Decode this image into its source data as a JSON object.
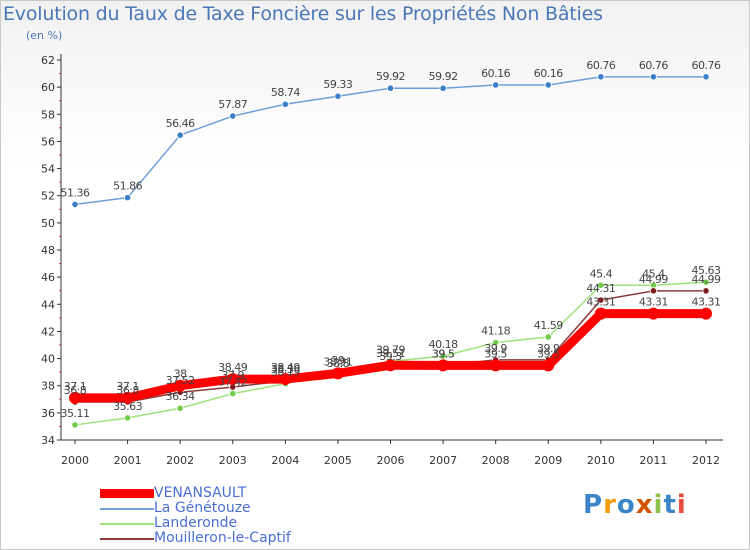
{
  "title": "Evolution du Taux de Taxe Foncière sur les Propriétés Non Bâties",
  "unit_label": "(en %)",
  "logo": {
    "letters": [
      "P",
      "r",
      "o",
      "x",
      "i",
      "t",
      "i"
    ],
    "colors": [
      "#3a86c8",
      "#f39c12",
      "#3a86c8",
      "#d35400",
      "#8bc34a",
      "#3a86c8",
      "#e74c3c"
    ]
  },
  "chart_data": {
    "type": "line",
    "title": "Evolution du Taux de Taxe Foncière sur les Propriétés Non Bâties",
    "ylabel": "(en %)",
    "xlabel": "",
    "categories": [
      "2000",
      "2001",
      "2002",
      "2003",
      "2004",
      "2005",
      "2006",
      "2007",
      "2008",
      "2009",
      "2010",
      "2011",
      "2012"
    ],
    "ylim": [
      34,
      62
    ],
    "yticks": [
      34,
      36,
      38,
      40,
      42,
      44,
      46,
      48,
      50,
      52,
      54,
      56,
      58,
      60,
      62
    ],
    "grid": false,
    "series": [
      {
        "name": "VENANSAULT",
        "color": "#ff0000",
        "marker": "#ff0000",
        "width": 9,
        "values": [
          37.1,
          37.1,
          38,
          38.49,
          38.49,
          38.91,
          39.51,
          39.5,
          39.5,
          39.5,
          43.31,
          43.31,
          43.31
        ],
        "labels": [
          "37.1",
          "37.1",
          "38",
          "38.49",
          "38.49",
          "38.91",
          "39.51",
          "39.5",
          "39.5",
          "39.5",
          "43.31",
          "43.31",
          "43.31"
        ]
      },
      {
        "name": "La Génétouze",
        "color": "#6f9fd8",
        "marker": "#3a7fc8",
        "width": 1.5,
        "values": [
          51.36,
          51.86,
          56.46,
          57.87,
          58.74,
          59.33,
          59.92,
          59.92,
          60.16,
          60.16,
          60.76,
          60.76,
          60.76
        ],
        "labels": [
          "51.36",
          "51.86",
          "56.46",
          "57.87",
          "58.74",
          "59.33",
          "59.92",
          "59.92",
          "60.16",
          "60.16",
          "60.76",
          "60.76",
          "60.76"
        ]
      },
      {
        "name": "Landeronde",
        "color": "#9ee27a",
        "marker": "#72c94a",
        "width": 1.5,
        "values": [
          35.11,
          35.63,
          36.34,
          37.42,
          38.15,
          39,
          39.79,
          40.18,
          41.18,
          41.59,
          45.4,
          45.4,
          45.63
        ],
        "labels": [
          "35.11",
          "35.63",
          "36.34",
          "37.42",
          "38.15",
          "39",
          "39.79",
          "40.18",
          "41.18",
          "41.59",
          "45.4",
          "45.4",
          "45.63"
        ]
      },
      {
        "name": "Mouilleron-le-Captif",
        "color": "#8b3a3a",
        "marker": "#7a1f1f",
        "width": 1.5,
        "values": [
          36.8,
          36.8,
          37.52,
          37.9,
          38.36,
          38.8,
          39.3,
          39.5,
          39.9,
          39.9,
          44.31,
          44.99,
          44.99
        ],
        "labels": [
          "36.8",
          "36.8",
          "37.52",
          "37.9",
          "38.36",
          "38.8",
          "39.3",
          "39.5",
          "39.9",
          "39.9",
          "44.31",
          "44.99",
          "44.99"
        ]
      }
    ]
  }
}
